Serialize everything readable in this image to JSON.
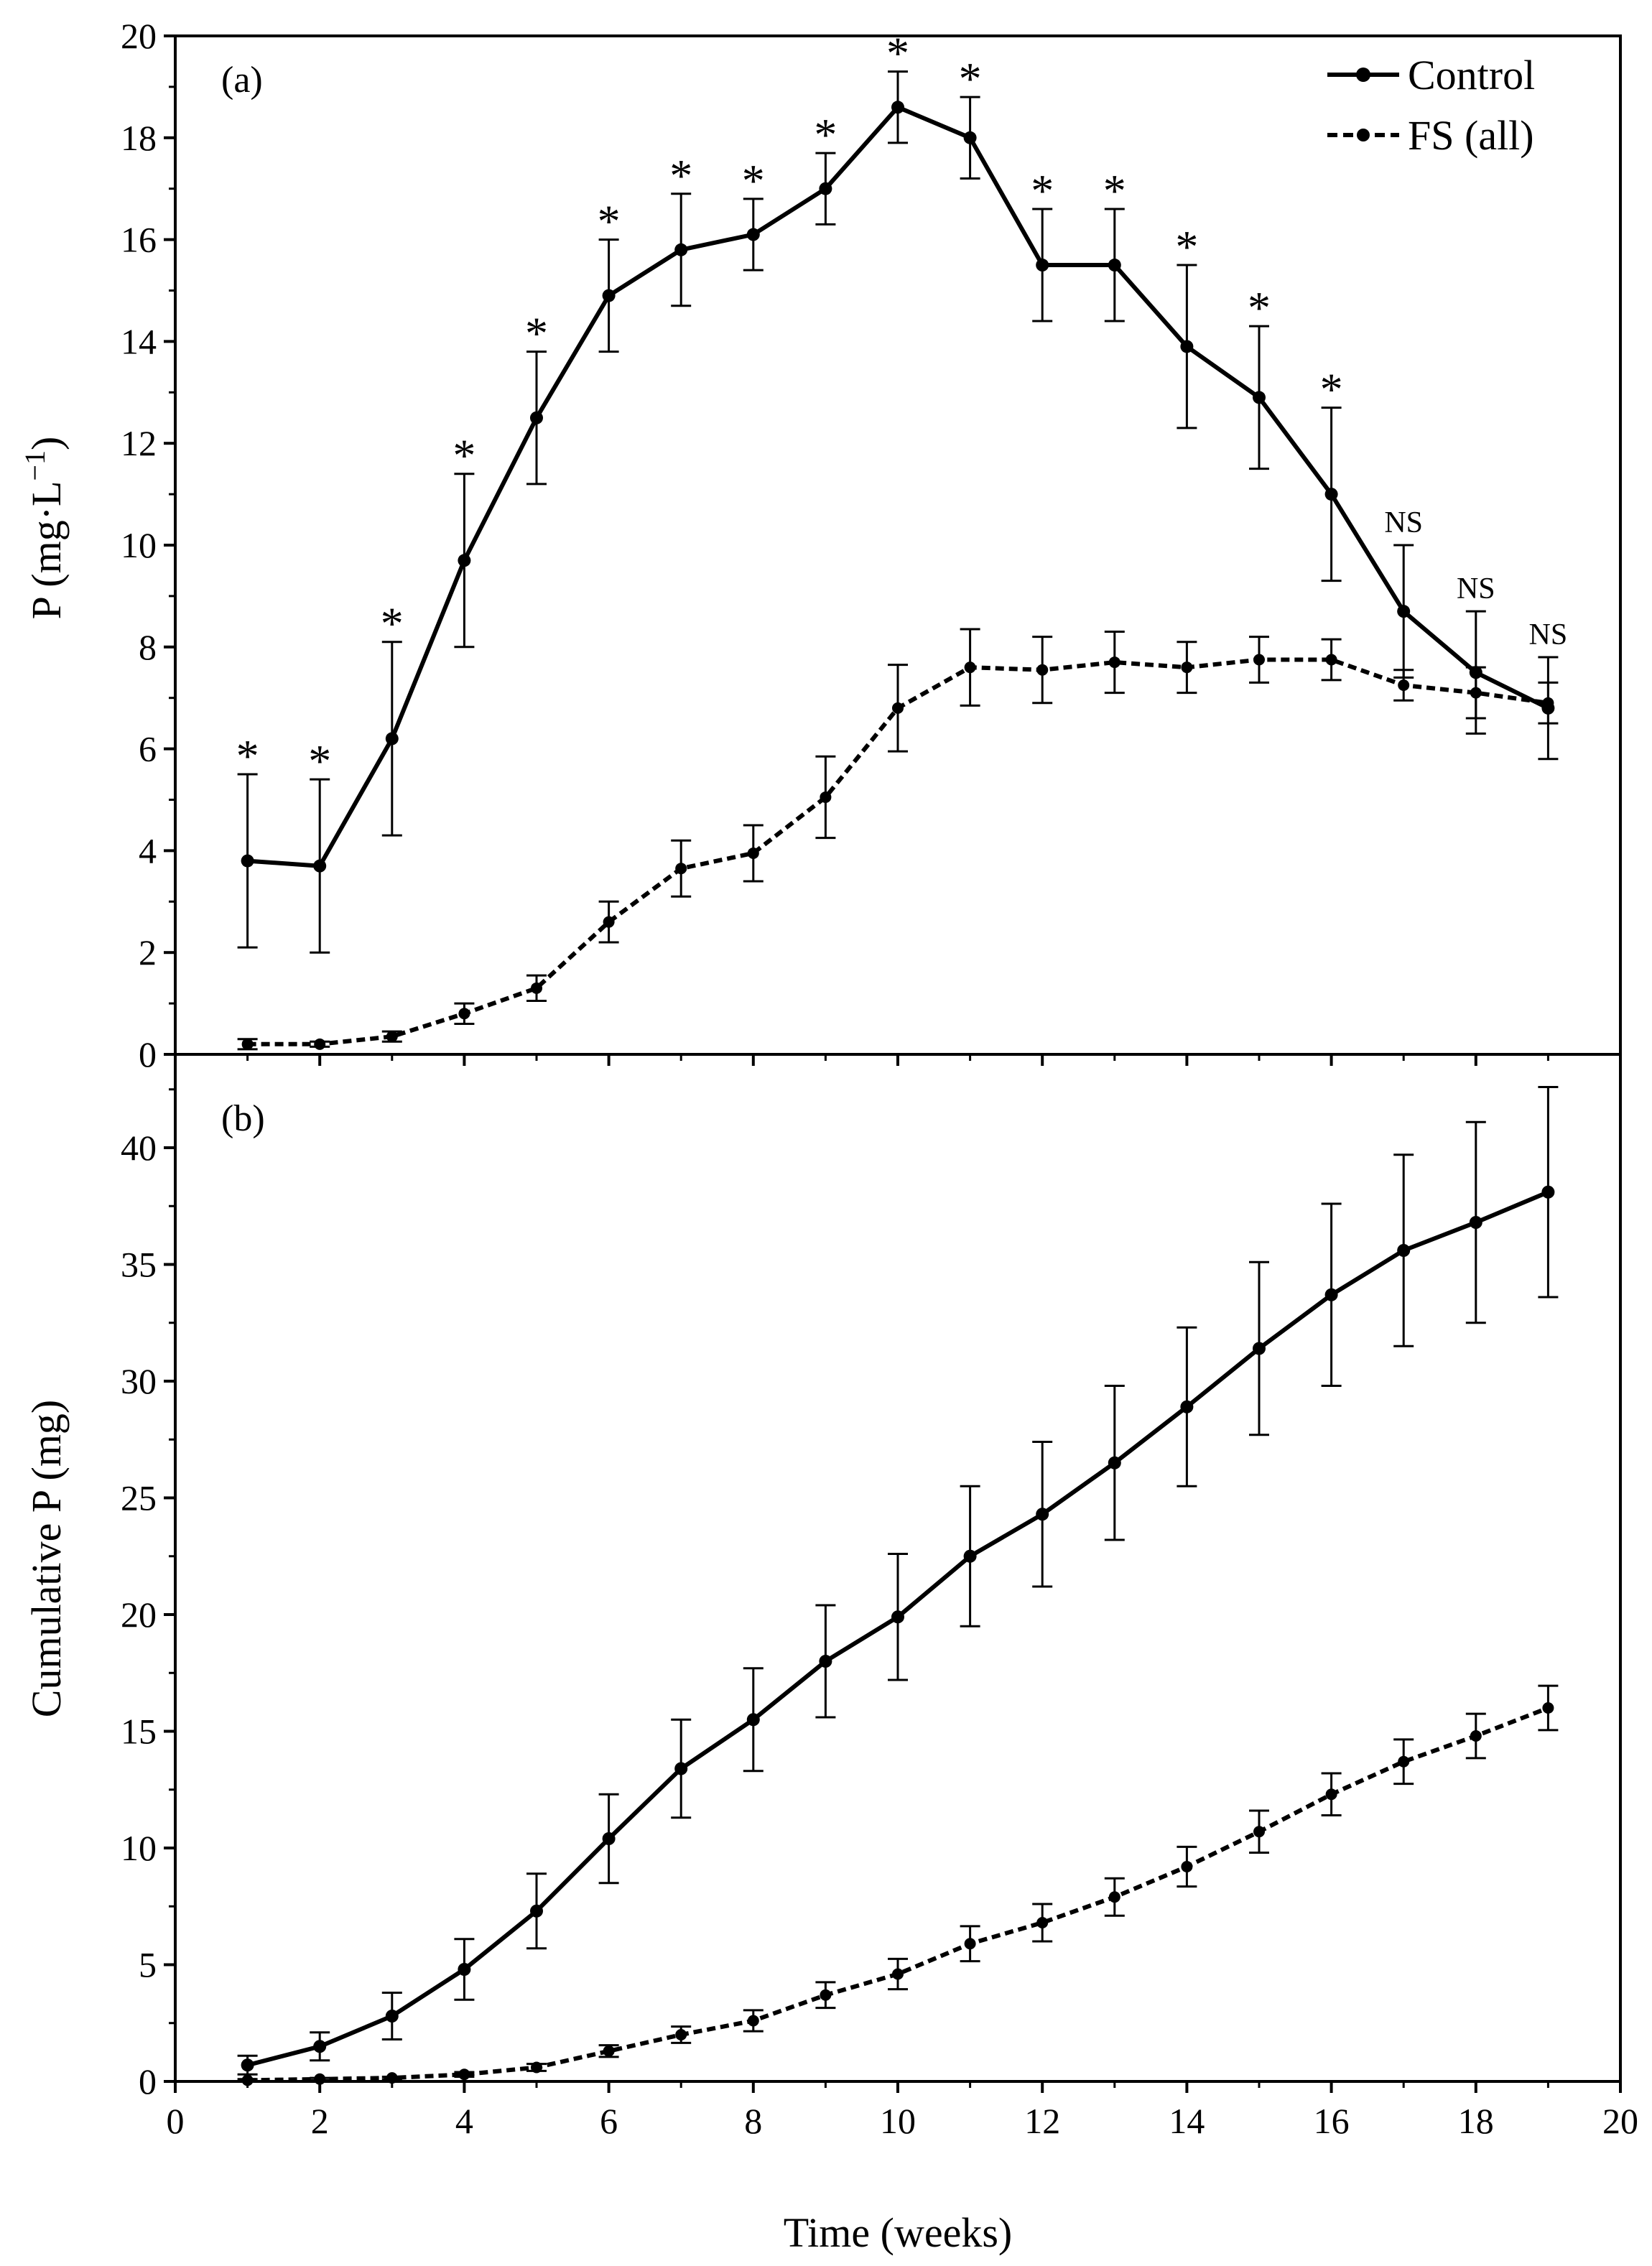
{
  "chart_data": [
    {
      "type": "line",
      "panel_label": "(a)",
      "title": "",
      "xlabel": "",
      "ylabel_main": "P (mg·L",
      "ylabel_sup": "−1",
      "ylabel_end": ")",
      "xlim": [
        0,
        20
      ],
      "ylim": [
        0,
        20
      ],
      "yticks": [
        0,
        2,
        4,
        6,
        8,
        10,
        12,
        14,
        16,
        18,
        20
      ],
      "x": [
        1,
        2,
        3,
        4,
        5,
        6,
        7,
        8,
        9,
        10,
        11,
        12,
        13,
        14,
        15,
        16,
        17,
        18,
        19
      ],
      "series": [
        {
          "name": "Control",
          "style": "solid",
          "values": [
            3.8,
            3.7,
            6.2,
            9.7,
            12.5,
            14.9,
            15.8,
            16.1,
            17.0,
            18.6,
            18.0,
            15.5,
            15.5,
            13.9,
            12.9,
            11.0,
            8.7,
            7.5,
            6.8
          ],
          "errors": [
            1.7,
            1.7,
            1.9,
            1.7,
            1.3,
            1.1,
            1.1,
            0.7,
            0.7,
            0.7,
            0.8,
            1.1,
            1.1,
            1.6,
            1.4,
            1.7,
            1.3,
            1.2,
            1.0
          ]
        },
        {
          "name": "FS (all)",
          "style": "dashed",
          "values": [
            0.2,
            0.2,
            0.35,
            0.8,
            1.3,
            2.6,
            3.65,
            3.95,
            5.05,
            6.8,
            7.6,
            7.55,
            7.7,
            7.6,
            7.75,
            7.75,
            7.25,
            7.1,
            6.9
          ],
          "errors": [
            0.1,
            0.05,
            0.1,
            0.2,
            0.25,
            0.4,
            0.55,
            0.55,
            0.8,
            0.85,
            0.75,
            0.65,
            0.6,
            0.5,
            0.45,
            0.4,
            0.3,
            0.5,
            0.4
          ]
        }
      ],
      "significance": [
        "*",
        "*",
        "*",
        "*",
        "*",
        "*",
        "*",
        "*",
        "*",
        "*",
        "*",
        "*",
        "*",
        "*",
        "*",
        "*",
        "NS",
        "NS",
        "NS"
      ],
      "legend": [
        "Control",
        "FS (all)"
      ]
    },
    {
      "type": "line",
      "panel_label": "(b)",
      "title": "",
      "xlabel": "Time (weeks)",
      "ylabel": "Cumulative P (mg)",
      "xlim": [
        0,
        20
      ],
      "ylim": [
        0,
        44
      ],
      "xticks": [
        0,
        2,
        4,
        6,
        8,
        10,
        12,
        14,
        16,
        18,
        20
      ],
      "yticks": [
        0,
        5,
        10,
        15,
        20,
        25,
        30,
        35,
        40
      ],
      "x": [
        1,
        2,
        3,
        4,
        5,
        6,
        7,
        8,
        9,
        10,
        11,
        12,
        13,
        14,
        15,
        16,
        17,
        18,
        19
      ],
      "series": [
        {
          "name": "Control",
          "style": "solid",
          "values": [
            0.7,
            1.5,
            2.8,
            4.8,
            7.3,
            10.4,
            13.4,
            15.5,
            18.0,
            19.9,
            22.5,
            24.3,
            26.5,
            28.9,
            31.4,
            33.7,
            35.6,
            36.8,
            38.1
          ],
          "errors": [
            0.4,
            0.6,
            1.0,
            1.3,
            1.6,
            1.9,
            2.1,
            2.2,
            2.4,
            2.7,
            3.0,
            3.1,
            3.3,
            3.4,
            3.7,
            3.9,
            4.1,
            4.3,
            4.5
          ]
        },
        {
          "name": "FS (all)",
          "style": "dashed",
          "values": [
            0.05,
            0.1,
            0.15,
            0.3,
            0.6,
            1.3,
            2.0,
            2.6,
            3.7,
            4.6,
            5.9,
            6.8,
            7.9,
            9.2,
            10.7,
            12.3,
            13.7,
            14.8,
            16.0
          ],
          "errors": [
            0.05,
            0.05,
            0.05,
            0.1,
            0.15,
            0.25,
            0.35,
            0.45,
            0.55,
            0.65,
            0.75,
            0.8,
            0.8,
            0.85,
            0.9,
            0.9,
            0.95,
            0.95,
            0.95
          ]
        }
      ]
    }
  ]
}
